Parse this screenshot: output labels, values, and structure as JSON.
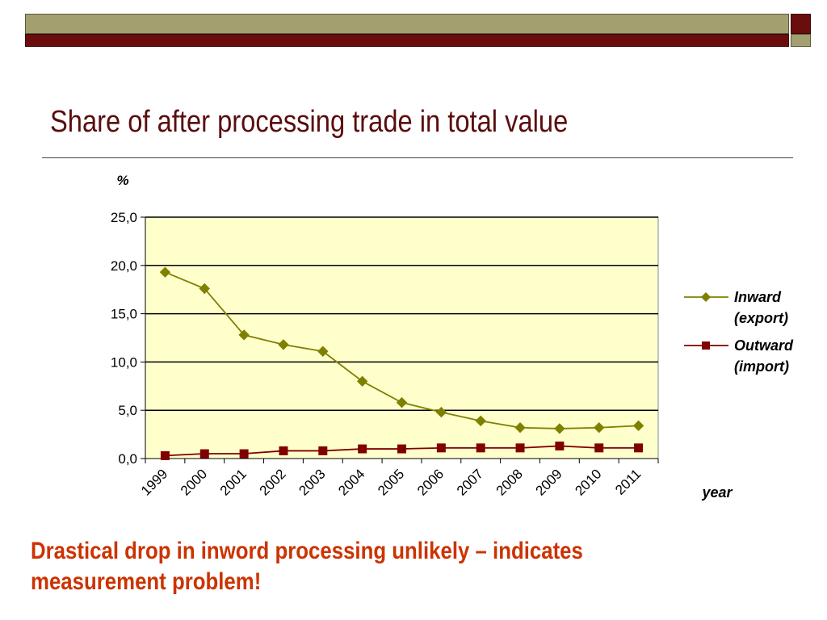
{
  "slide": {
    "title": "Share of after processing trade in total value",
    "footnote": "Drastical drop in inword processing unlikely  –  indicates measurement problem!"
  },
  "colors": {
    "bar_olive": "#a39f6f",
    "bar_maroon": "#6b0d0d",
    "title": "#5a0d0d",
    "footnote": "#cc3300",
    "plot_bg": "#ffffcc",
    "series_inward": "#808000",
    "series_outward": "#800000"
  },
  "chart_data": {
    "type": "line",
    "title": "",
    "ylabel": "%",
    "xlabel": "year",
    "ylim": [
      0,
      25
    ],
    "yticks": [
      "0,0",
      "5,0",
      "10,0",
      "15,0",
      "20,0",
      "25,0"
    ],
    "categories": [
      "1999",
      "2000",
      "2001",
      "2002",
      "2003",
      "2004",
      "2005",
      "2006",
      "2007",
      "2008",
      "2009",
      "2010",
      "2011"
    ],
    "grid": true,
    "legend": "right",
    "series": [
      {
        "name": "Inward (export)",
        "label_lines": [
          "Inward",
          "(export)"
        ],
        "marker": "diamond",
        "color": "#808000",
        "values": [
          19.3,
          17.6,
          12.8,
          11.8,
          11.1,
          8.0,
          5.8,
          4.8,
          3.9,
          3.2,
          3.1,
          3.2,
          3.4
        ]
      },
      {
        "name": "Outward (import)",
        "label_lines": [
          "Outward",
          "(import)"
        ],
        "marker": "square",
        "color": "#800000",
        "values": [
          0.3,
          0.5,
          0.5,
          0.8,
          0.8,
          1.0,
          1.0,
          1.1,
          1.1,
          1.1,
          1.3,
          1.1,
          1.1
        ]
      }
    ]
  }
}
